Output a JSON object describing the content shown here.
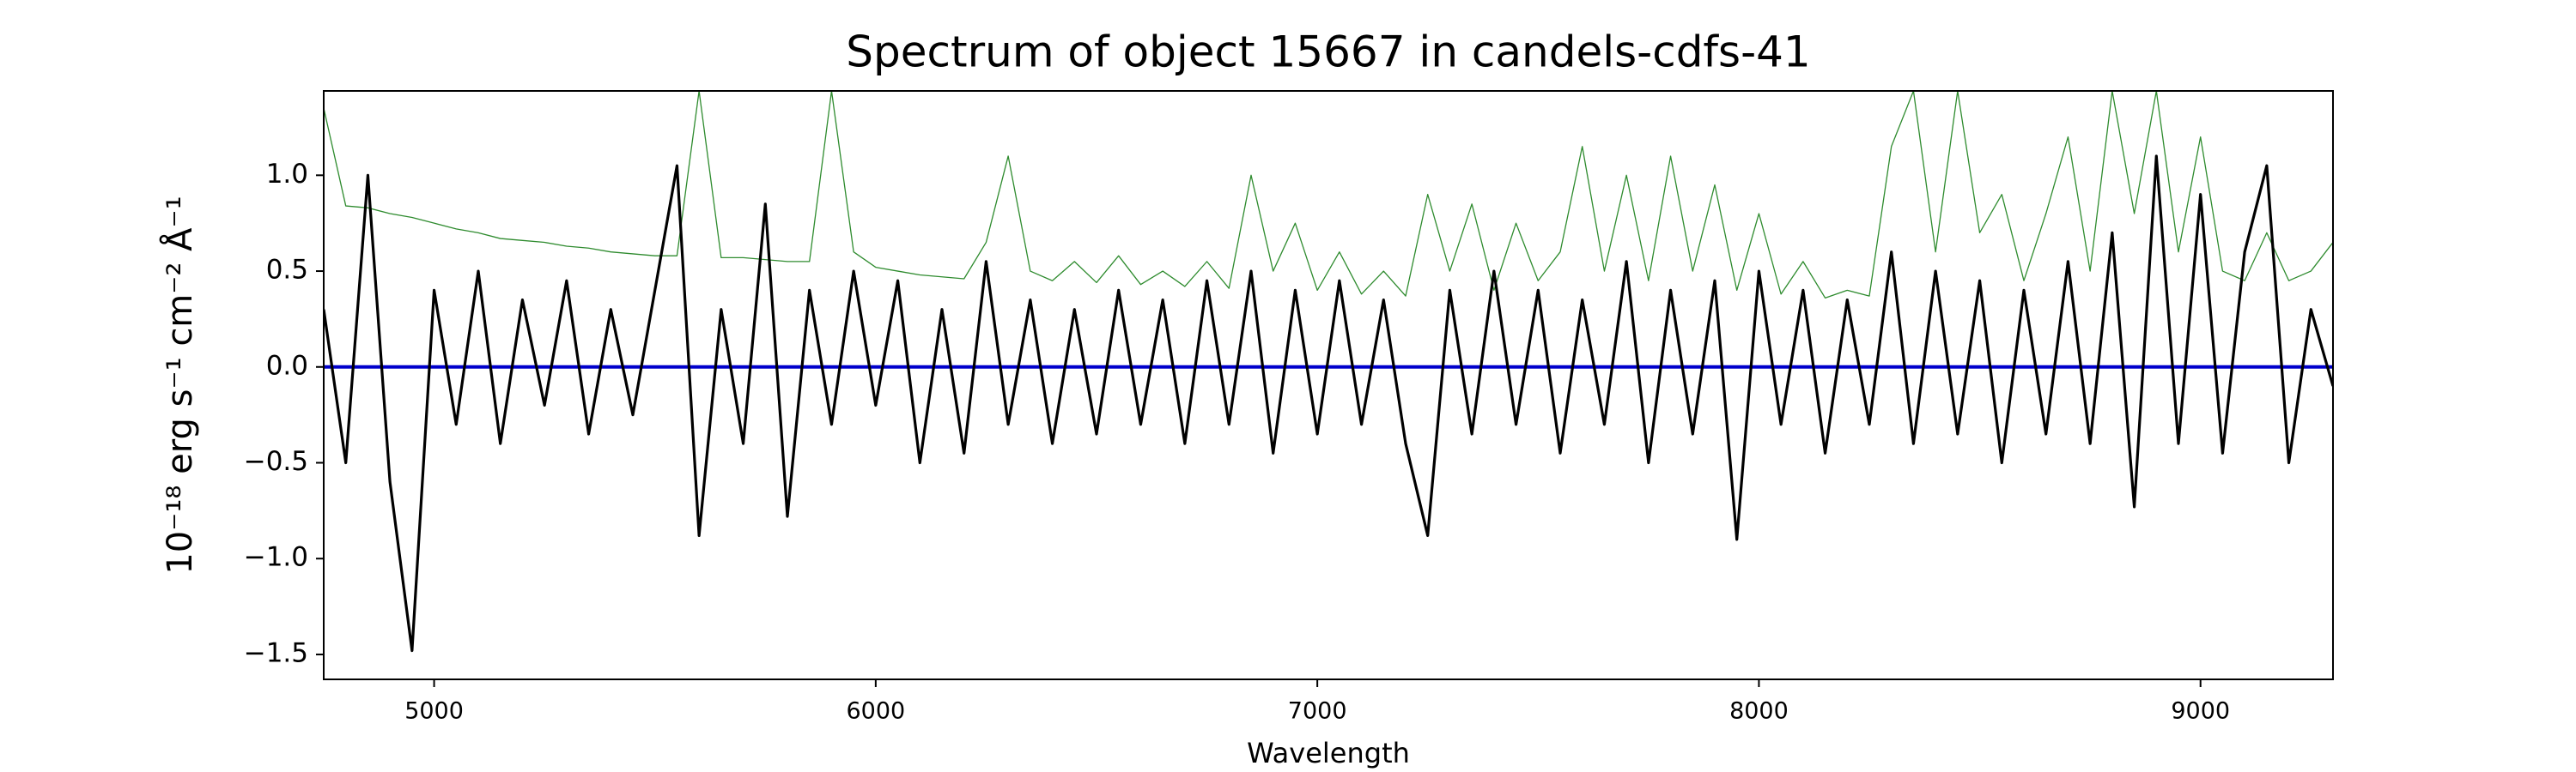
{
  "chart_data": {
    "type": "line",
    "title": "Spectrum of object 15667 in candels-cdfs-41",
    "x_label": "Wavelength",
    "y_label": "10⁻¹⁸ erg s⁻¹ cm⁻² Å⁻¹",
    "x": [
      4750,
      4800,
      4850,
      4900,
      4950,
      5000,
      5050,
      5100,
      5150,
      5200,
      5250,
      5300,
      5350,
      5400,
      5450,
      5500,
      5550,
      5600,
      5650,
      5700,
      5750,
      5800,
      5850,
      5900,
      5950,
      6000,
      6050,
      6100,
      6150,
      6200,
      6250,
      6300,
      6350,
      6400,
      6450,
      6500,
      6550,
      6600,
      6650,
      6700,
      6750,
      6800,
      6850,
      6900,
      6950,
      7000,
      7050,
      7100,
      7150,
      7200,
      7250,
      7300,
      7350,
      7400,
      7450,
      7500,
      7550,
      7600,
      7650,
      7700,
      7750,
      7800,
      7850,
      7900,
      7950,
      8000,
      8050,
      8100,
      8150,
      8200,
      8250,
      8300,
      8350,
      8400,
      8450,
      8500,
      8550,
      8600,
      8650,
      8700,
      8750,
      8800,
      8850,
      8900,
      8950,
      9000,
      9050,
      9100,
      9150,
      9200,
      9250,
      9300
    ],
    "series": [
      {
        "color": "#2e8b2e",
        "values": [
          1.35,
          0.84,
          0.83,
          0.8,
          0.78,
          0.75,
          0.72,
          0.7,
          0.67,
          0.66,
          0.65,
          0.63,
          0.62,
          0.6,
          0.59,
          0.58,
          0.58,
          1.44,
          0.57,
          0.57,
          0.56,
          0.55,
          0.55,
          1.44,
          0.6,
          0.52,
          0.5,
          0.48,
          0.47,
          0.46,
          0.65,
          1.1,
          0.5,
          0.45,
          0.55,
          0.44,
          0.58,
          0.43,
          0.5,
          0.42,
          0.55,
          0.41,
          1.0,
          0.5,
          0.75,
          0.4,
          0.6,
          0.38,
          0.5,
          0.37,
          0.9,
          0.5,
          0.85,
          0.4,
          0.75,
          0.45,
          0.6,
          1.15,
          0.5,
          1.0,
          0.45,
          1.1,
          0.5,
          0.95,
          0.4,
          0.8,
          0.38,
          0.55,
          0.36,
          0.4,
          0.37,
          1.15,
          1.44,
          0.6,
          1.44,
          0.7,
          0.9,
          0.45,
          0.8,
          1.2,
          0.5,
          1.44,
          0.8,
          1.44,
          0.6,
          1.2,
          0.5,
          0.45,
          0.7,
          0.45,
          0.5,
          0.65
        ]
      },
      {
        "color": "#0000cc",
        "values": [
          0,
          0,
          0,
          0,
          0,
          0,
          0,
          0,
          0,
          0,
          0,
          0,
          0,
          0,
          0,
          0,
          0,
          0,
          0,
          0,
          0,
          0,
          0,
          0,
          0,
          0,
          0,
          0,
          0,
          0,
          0,
          0,
          0,
          0,
          0,
          0,
          0,
          0,
          0,
          0,
          0,
          0,
          0,
          0,
          0,
          0,
          0,
          0,
          0,
          0,
          0,
          0,
          0,
          0,
          0,
          0,
          0,
          0,
          0,
          0,
          0,
          0,
          0,
          0,
          0,
          0,
          0,
          0,
          0,
          0,
          0,
          0,
          0,
          0,
          0,
          0,
          0,
          0,
          0,
          0,
          0,
          0,
          0,
          0,
          0,
          0,
          0,
          0,
          0,
          0,
          0,
          0
        ]
      },
      {
        "color": "#000000",
        "values": [
          0.3,
          -0.5,
          1.0,
          -0.6,
          -1.48,
          0.4,
          -0.3,
          0.5,
          -0.4,
          0.35,
          -0.2,
          0.45,
          -0.35,
          0.3,
          -0.25,
          0.4,
          1.05,
          -0.88,
          0.3,
          -0.4,
          0.85,
          -0.78,
          0.4,
          -0.3,
          0.5,
          -0.2,
          0.45,
          -0.5,
          0.3,
          -0.45,
          0.55,
          -0.3,
          0.35,
          -0.4,
          0.3,
          -0.35,
          0.4,
          -0.3,
          0.35,
          -0.4,
          0.45,
          -0.3,
          0.5,
          -0.45,
          0.4,
          -0.35,
          0.45,
          -0.3,
          0.35,
          -0.4,
          -0.88,
          0.4,
          -0.35,
          0.5,
          -0.3,
          0.4,
          -0.45,
          0.35,
          -0.3,
          0.55,
          -0.5,
          0.4,
          -0.35,
          0.45,
          -0.9,
          0.5,
          -0.3,
          0.4,
          -0.45,
          0.35,
          -0.3,
          0.6,
          -0.4,
          0.5,
          -0.35,
          0.45,
          -0.5,
          0.4,
          -0.35,
          0.55,
          -0.4,
          0.7,
          -0.73,
          1.1,
          -0.4,
          0.9,
          -0.45,
          0.6,
          1.05,
          -0.5,
          0.3,
          -0.1
        ]
      }
    ],
    "xlim": [
      4750,
      9300
    ],
    "ylim": [
      -1.63,
      1.44
    ],
    "xticks": [
      5000,
      6000,
      7000,
      8000,
      9000
    ],
    "yticks": [
      {
        "value": -1.5,
        "label": "−1.5"
      },
      {
        "value": -1.0,
        "label": "−1.0"
      },
      {
        "value": -0.5,
        "label": "−0.5"
      },
      {
        "value": 0,
        "label": "0.0"
      },
      0.5,
      {
        "value": 1.0,
        "label": "1.0"
      }
    ]
  }
}
